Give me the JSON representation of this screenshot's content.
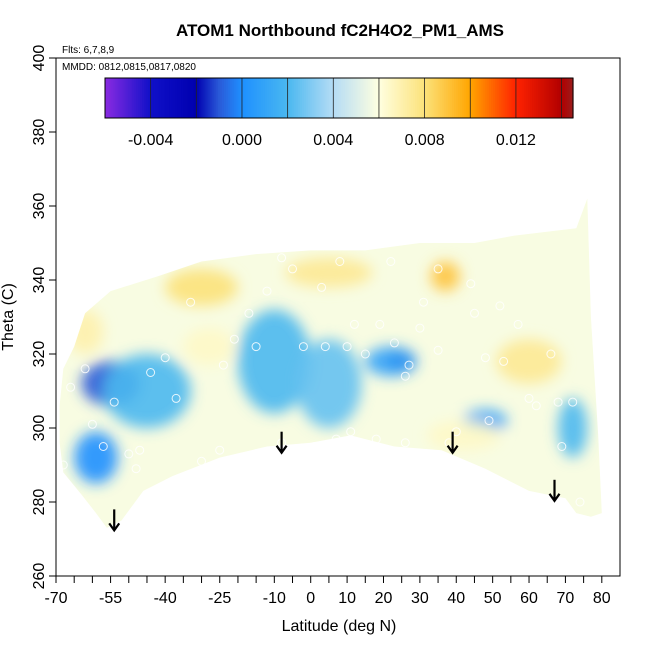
{
  "chart_data": {
    "type": "heatmap",
    "title": "ATOM1 Northbound fC2H4O2_PM1_AMS",
    "annotations": {
      "flights": "Flts: 6,7,8,9",
      "dates": "MMDD: 0812,0815,0817,0820"
    },
    "xlabel": "Latitude (deg N)",
    "ylabel": "Theta (C)",
    "xlim": [
      -70,
      85
    ],
    "ylim": [
      260,
      400
    ],
    "x_ticks": [
      -70,
      -55,
      -40,
      -25,
      -10,
      0,
      10,
      20,
      30,
      40,
      50,
      60,
      70,
      80
    ],
    "x_tick_labels": [
      "-70",
      "-55",
      "-40",
      "-25",
      "-10",
      "0",
      "10",
      "20",
      "30",
      "40",
      "50",
      "60",
      "70",
      "80"
    ],
    "x_minor_ticks": [
      -65,
      -60,
      -50,
      -45,
      -35,
      -30,
      -20,
      -15,
      -5,
      5,
      15,
      25,
      35,
      45,
      55,
      65,
      75
    ],
    "y_ticks": [
      260,
      280,
      300,
      320,
      340,
      360,
      380,
      400
    ],
    "y_tick_labels": [
      "260",
      "280",
      "300",
      "320",
      "340",
      "360",
      "380",
      "400"
    ],
    "colorbar": {
      "range": [
        -0.006,
        0.0145
      ],
      "ticks": [
        -0.004,
        0.0,
        0.004,
        0.008,
        0.012
      ],
      "tick_labels": [
        "-0.004",
        "0.000",
        "0.004",
        "0.008",
        "0.012"
      ],
      "bands": [
        -0.006,
        -0.004,
        -0.002,
        0.0,
        0.002,
        0.004,
        0.006,
        0.008,
        0.01,
        0.012,
        0.014
      ],
      "stops": [
        {
          "v": -0.006,
          "c": "#8a2be2"
        },
        {
          "v": -0.004,
          "c": "#1010c8"
        },
        {
          "v": -0.002,
          "c": "#0000b0"
        },
        {
          "v": -0.001,
          "c": "#2a5ad8"
        },
        {
          "v": 0.0,
          "c": "#1e90ff"
        },
        {
          "v": 0.002,
          "c": "#4ab8f0"
        },
        {
          "v": 0.004,
          "c": "#b5dcf5"
        },
        {
          "v": 0.006,
          "c": "#ffffe0"
        },
        {
          "v": 0.008,
          "c": "#fce27a"
        },
        {
          "v": 0.01,
          "c": "#ffa500"
        },
        {
          "v": 0.012,
          "c": "#ff2200"
        },
        {
          "v": 0.014,
          "c": "#b20000"
        },
        {
          "v": 0.0145,
          "c": "#9b1c1c"
        }
      ]
    },
    "arrows": [
      {
        "lat": -54,
        "theta": 278
      },
      {
        "lat": -8,
        "theta": 299
      },
      {
        "lat": 39,
        "theta": 299
      },
      {
        "lat": 67,
        "theta": 286
      }
    ],
    "domain_boundary": [
      [
        -68,
        316
      ],
      [
        -69,
        306
      ],
      [
        -69,
        296
      ],
      [
        -68,
        288
      ],
      [
        -63,
        282
      ],
      [
        -59,
        277
      ],
      [
        -56,
        273
      ],
      [
        -52,
        275
      ],
      [
        -46,
        283
      ],
      [
        -38,
        287
      ],
      [
        -25,
        292
      ],
      [
        -12,
        295
      ],
      [
        0,
        296
      ],
      [
        11,
        298
      ],
      [
        23,
        295
      ],
      [
        36,
        294
      ],
      [
        48,
        289
      ],
      [
        60,
        283
      ],
      [
        70,
        281
      ],
      [
        73,
        277
      ],
      [
        77,
        276
      ],
      [
        80,
        277
      ],
      [
        79,
        298
      ],
      [
        77,
        330
      ],
      [
        76,
        362
      ],
      [
        73,
        354
      ],
      [
        56,
        352
      ],
      [
        45,
        350
      ],
      [
        30,
        350
      ],
      [
        15,
        348
      ],
      [
        0,
        348
      ],
      [
        -15,
        347
      ],
      [
        -30,
        345
      ],
      [
        -42,
        341
      ],
      [
        -55,
        337
      ],
      [
        -62,
        331
      ],
      [
        -65,
        322
      ]
    ],
    "anomalies": [
      {
        "lat": -55,
        "theta": 312,
        "value": -0.001,
        "sx": 8,
        "sy": 6
      },
      {
        "lat": -59,
        "theta": 292,
        "value": 0.0,
        "sx": 6,
        "sy": 7
      },
      {
        "lat": -45,
        "theta": 310,
        "value": 0.002,
        "sx": 12,
        "sy": 10
      },
      {
        "lat": -10,
        "theta": 318,
        "value": 0.002,
        "sx": 10,
        "sy": 14
      },
      {
        "lat": 5,
        "theta": 312,
        "value": 0.0025,
        "sx": 9,
        "sy": 12
      },
      {
        "lat": 25,
        "theta": 318,
        "value": -0.002,
        "sx": 4,
        "sy": 3
      },
      {
        "lat": 22,
        "theta": 318,
        "value": 0.001,
        "sx": 7,
        "sy": 4
      },
      {
        "lat": 48,
        "theta": 302,
        "value": 0.001,
        "sx": 6,
        "sy": 3
      },
      {
        "lat": 72,
        "theta": 300,
        "value": 0.002,
        "sx": 4,
        "sy": 8
      },
      {
        "lat": -30,
        "theta": 338,
        "value": 0.008,
        "sx": 10,
        "sy": 5
      },
      {
        "lat": 5,
        "theta": 342,
        "value": 0.0075,
        "sx": 12,
        "sy": 4
      },
      {
        "lat": 37,
        "theta": 341,
        "value": 0.009,
        "sx": 4,
        "sy": 4
      },
      {
        "lat": 60,
        "theta": 318,
        "value": 0.0075,
        "sx": 9,
        "sy": 6
      },
      {
        "lat": 42,
        "theta": 298,
        "value": 0.0065,
        "sx": 10,
        "sy": 4
      },
      {
        "lat": -62,
        "theta": 326,
        "value": 0.007,
        "sx": 5,
        "sy": 6
      },
      {
        "lat": -28,
        "theta": 322,
        "value": 0.0065,
        "sx": 7,
        "sy": 5
      }
    ],
    "observations": [
      [
        -68,
        290
      ],
      [
        -66,
        311
      ],
      [
        -60,
        301
      ],
      [
        -57,
        295
      ],
      [
        -54,
        307
      ],
      [
        -50,
        293
      ],
      [
        -48,
        289
      ],
      [
        -47,
        294
      ],
      [
        -44,
        315
      ],
      [
        -37,
        308
      ],
      [
        -30,
        291
      ],
      [
        -25,
        294
      ],
      [
        -24,
        317
      ],
      [
        -21,
        324
      ],
      [
        -15,
        322
      ],
      [
        -12,
        337
      ],
      [
        -8,
        346
      ],
      [
        -8,
        296
      ],
      [
        -5,
        343
      ],
      [
        -2,
        322
      ],
      [
        1,
        295
      ],
      [
        3,
        338
      ],
      [
        4,
        322
      ],
      [
        7,
        297
      ],
      [
        10,
        322
      ],
      [
        11,
        299
      ],
      [
        12,
        328
      ],
      [
        15,
        320
      ],
      [
        18,
        297
      ],
      [
        19,
        328
      ],
      [
        23,
        323
      ],
      [
        26,
        296
      ],
      [
        26,
        314
      ],
      [
        27,
        317
      ],
      [
        30,
        327
      ],
      [
        35,
        343
      ],
      [
        35,
        321
      ],
      [
        38,
        296
      ],
      [
        40,
        299
      ],
      [
        45,
        331
      ],
      [
        48,
        319
      ],
      [
        49,
        302
      ],
      [
        53,
        318
      ],
      [
        57,
        328
      ],
      [
        60,
        308
      ],
      [
        62,
        306
      ],
      [
        66,
        320
      ],
      [
        68,
        307
      ],
      [
        69,
        295
      ],
      [
        72,
        307
      ],
      [
        74,
        280
      ],
      [
        -40,
        319
      ],
      [
        -62,
        316
      ],
      [
        -33,
        334
      ],
      [
        -17,
        331
      ],
      [
        8,
        345
      ],
      [
        22,
        345
      ],
      [
        31,
        334
      ],
      [
        44,
        339
      ],
      [
        52,
        333
      ]
    ]
  }
}
